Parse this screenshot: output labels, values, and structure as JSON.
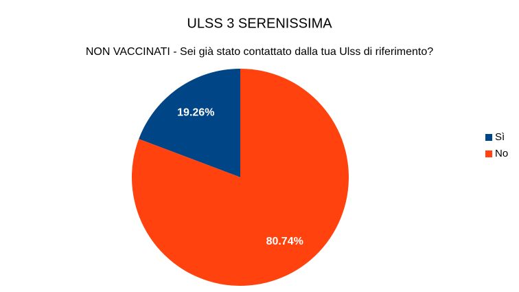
{
  "chart_data": {
    "type": "pie",
    "title": "ULSS 3 SERENISSIMA",
    "subtitle": "NON VACCINATI - Sei già stato contattato dalla tua Ulss di riferimento?",
    "categories": [
      "Sì",
      "No"
    ],
    "values": [
      19.26,
      80.74
    ],
    "value_labels": [
      "19.26%",
      "80.74%"
    ],
    "colors": [
      "#004586",
      "#ff420e"
    ],
    "legend": "right"
  }
}
